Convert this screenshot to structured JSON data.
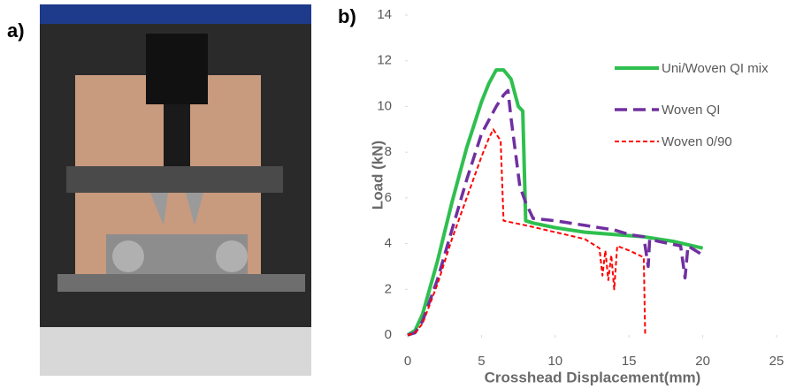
{
  "panel_a_label": "a)",
  "chart_data": {
    "type": "line",
    "panel_label": "b)",
    "x_label": "Crosshead  Displacement(mm)",
    "y_label": "Load (kN)",
    "xlim": [
      0,
      25
    ],
    "xticks": [
      0,
      5,
      10,
      15,
      20,
      25
    ],
    "ylim": [
      0,
      14
    ],
    "yticks": [
      0,
      2,
      4,
      6,
      8,
      10,
      12,
      14
    ],
    "grid": false,
    "series": [
      {
        "name": "Uni/Woven QI mix",
        "color": "#2fbf4f",
        "dash": "solid",
        "x": [
          0,
          0.5,
          1,
          2,
          3,
          4,
          5,
          5.5,
          6,
          6.5,
          7,
          7.5,
          7.8,
          8,
          8.5,
          10,
          12,
          14,
          16,
          18,
          20
        ],
        "values": [
          0,
          0.2,
          0.9,
          3.2,
          5.8,
          8.2,
          10.2,
          11.0,
          11.6,
          11.6,
          11.2,
          10.0,
          9.8,
          5.0,
          4.9,
          4.7,
          4.5,
          4.4,
          4.3,
          4.1,
          3.8
        ]
      },
      {
        "name": "Woven QI",
        "color": "#7030a0",
        "dash": "long",
        "x": [
          0,
          0.5,
          1,
          2,
          3,
          4,
          5,
          6,
          6.5,
          6.8,
          7,
          7.3,
          7.6,
          8,
          8.5,
          10,
          12,
          14,
          15,
          16,
          16.3,
          16.4,
          17,
          18.5,
          18.8,
          19,
          20
        ],
        "values": [
          0,
          0.1,
          0.6,
          2.4,
          4.6,
          6.8,
          8.8,
          10.0,
          10.5,
          10.7,
          9.5,
          8.0,
          6.5,
          5.8,
          5.1,
          5.0,
          4.8,
          4.6,
          4.4,
          4.3,
          3.0,
          4.2,
          4.1,
          3.9,
          2.5,
          3.9,
          3.5
        ]
      },
      {
        "name": "Woven 0/90",
        "color": "#ff0000",
        "dash": "short",
        "x": [
          0,
          0.5,
          1,
          2,
          3,
          4,
          5,
          5.5,
          5.8,
          6,
          6.3,
          6.5,
          8,
          10,
          12,
          13,
          13.2,
          13.4,
          13.6,
          13.8,
          14,
          14.2,
          15,
          16,
          16.1
        ],
        "values": [
          0,
          0.1,
          0.5,
          2.2,
          4.2,
          6.0,
          7.8,
          8.6,
          9.0,
          8.8,
          8.5,
          5.0,
          4.8,
          4.5,
          4.2,
          3.8,
          2.6,
          3.7,
          2.4,
          3.5,
          2.0,
          3.9,
          3.7,
          3.4,
          0
        ]
      }
    ]
  }
}
